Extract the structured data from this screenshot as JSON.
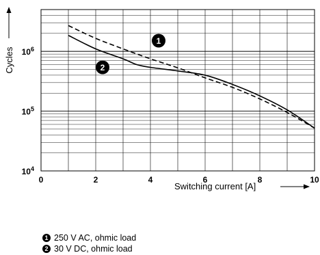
{
  "chart_data": {
    "type": "line",
    "xlabel": "Switching current [A]",
    "ylabel": "Cycles",
    "xlim": [
      0,
      10
    ],
    "ylim": [
      10000,
      5000000
    ],
    "yscale": "log",
    "x_ticks": [
      "0",
      "2",
      "4",
      "6",
      "8",
      "10"
    ],
    "y_ticks": [
      {
        "value": 10000,
        "base": "10",
        "exp": "4"
      },
      {
        "value": 100000,
        "base": "10",
        "exp": "5"
      },
      {
        "value": 1000000,
        "base": "10",
        "exp": "6"
      }
    ],
    "grid": true,
    "series": [
      {
        "marker": "1",
        "name": "250 V AC, ohmic load",
        "dash": "dashed",
        "color": "#000000",
        "x": [
          1.0,
          2.0,
          3.0,
          4.0,
          5.0,
          6.0,
          7.0,
          8.0,
          9.0,
          10.0
        ],
        "y": [
          2700000,
          1650000,
          1100000,
          750000,
          530000,
          360000,
          250000,
          160000,
          95000,
          52000
        ]
      },
      {
        "marker": "2",
        "name": "30 V DC, ohmic load",
        "dash": "solid",
        "color": "#000000",
        "x": [
          1.0,
          2.0,
          3.0,
          3.5,
          4.0,
          5.0,
          6.0,
          7.0,
          8.0,
          9.0,
          10.0
        ],
        "y": [
          1850000,
          1100000,
          750000,
          600000,
          540000,
          470000,
          400000,
          280000,
          180000,
          105000,
          52000
        ]
      }
    ]
  },
  "legend": [
    {
      "marker": "1",
      "text": "250 V AC, ohmic load"
    },
    {
      "marker": "2",
      "text": "30 V DC, ohmic load"
    }
  ]
}
